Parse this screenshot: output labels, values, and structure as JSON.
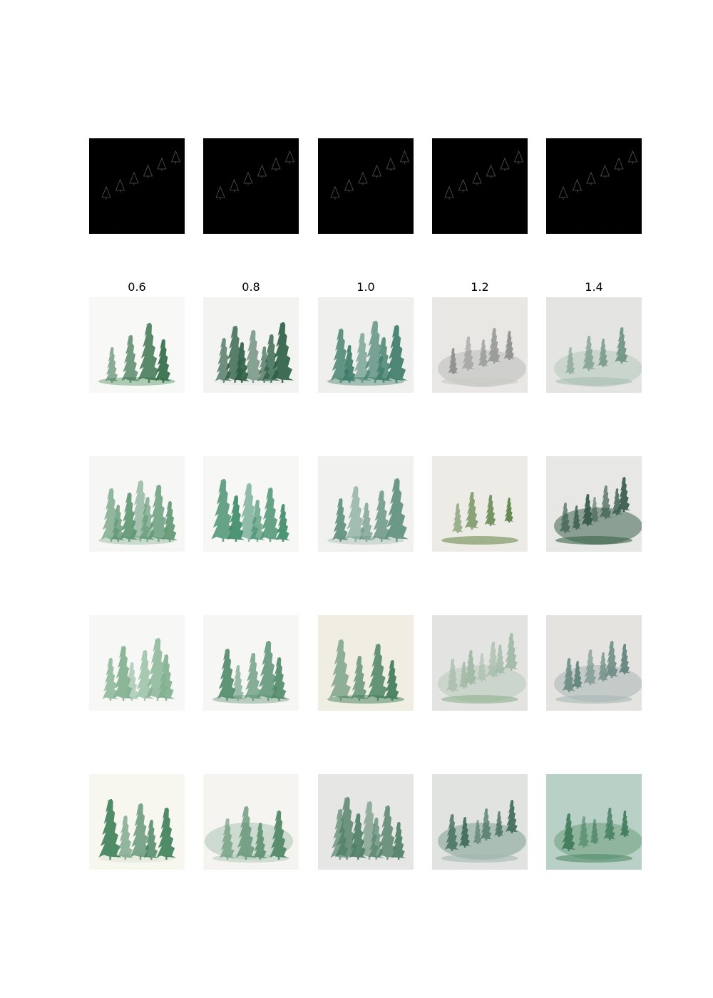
{
  "column_labels": [
    "0.6",
    "0.8",
    "1.0",
    "1.2",
    "1.4"
  ],
  "figure": {
    "control_row": [
      {
        "name": "control-edge-map-0.6"
      },
      {
        "name": "control-edge-map-0.8"
      },
      {
        "name": "control-edge-map-1.0"
      },
      {
        "name": "control-edge-map-1.2"
      },
      {
        "name": "control-edge-map-1.4"
      }
    ],
    "sample_rows": 4
  },
  "tiles": [
    {
      "bg": "#f8f8f6",
      "ground": "#7fae89",
      "fg": "#2f6b45",
      "hill": null
    },
    {
      "bg": "#f3f3f1",
      "ground": "#e6ebe8",
      "fg": "#2d5e44",
      "hill": null
    },
    {
      "bg": "#efefed",
      "ground": "#6f9e8c",
      "fg": "#3c7b68",
      "hill": null
    },
    {
      "bg": "#e9e7e4",
      "ground": "#c9c9c7",
      "fg": "#8a8e8b",
      "hill": "#b9bbb9"
    },
    {
      "bg": "#e4e5e2",
      "ground": "#a9c0b3",
      "fg": "#6d9281",
      "hill": "#b5c8bd"
    },
    {
      "bg": "#f6f6f4",
      "ground": "#a9c8b0",
      "fg": "#5e9672",
      "hill": null
    },
    {
      "bg": "#f7f7f5",
      "ground": "#f7f7f5",
      "fg": "#3d8a68",
      "hill": null
    },
    {
      "bg": "#f1f1ef",
      "ground": "#b8cbc2",
      "fg": "#5f8f7c",
      "hill": null
    },
    {
      "bg": "#ecebe6",
      "ground": "#6e8b4e",
      "fg": "#587e40",
      "hill": null
    },
    {
      "bg": "#e7e8e5",
      "ground": "#3c6249",
      "fg": "#35584a",
      "hill": "#3f6450"
    },
    {
      "bg": "#f7f7f5",
      "ground": "#f7f7f5",
      "fg": "#7fb08f",
      "hill": null
    },
    {
      "bg": "#f6f6f4",
      "ground": "#8fb39c",
      "fg": "#4f8a69",
      "hill": null
    },
    {
      "bg": "#f0eee3",
      "ground": "#5e9270",
      "fg": "#3f7a58",
      "hill": null
    },
    {
      "bg": "#e3e4e1",
      "ground": "#8db08a",
      "fg": "#9fb8a5",
      "hill": "#b8c8bc"
    },
    {
      "bg": "#e4e3df",
      "ground": "#a7b7b5",
      "fg": "#5d817a",
      "hill": "#a9b6b4"
    },
    {
      "bg": "#f7f6ef",
      "ground": "#dfe6d7",
      "fg": "#3f7f5a",
      "hill": null
    },
    {
      "bg": "#f5f4f1",
      "ground": "#b7cdbf",
      "fg": "#4d8563",
      "hill": "#a9c4b3"
    },
    {
      "bg": "#e6e6e4",
      "ground": "#e6e6e4",
      "fg": "#4e7d65",
      "hill": null
    },
    {
      "bg": "#e1e3e0",
      "ground": "#a3b8b1",
      "fg": "#3f6a57",
      "hill": "#7fa094"
    },
    {
      "bg": "#b8d0c6",
      "ground": "#4f8a66",
      "fg": "#3f7a5a",
      "hill": "#6e9f80"
    }
  ]
}
